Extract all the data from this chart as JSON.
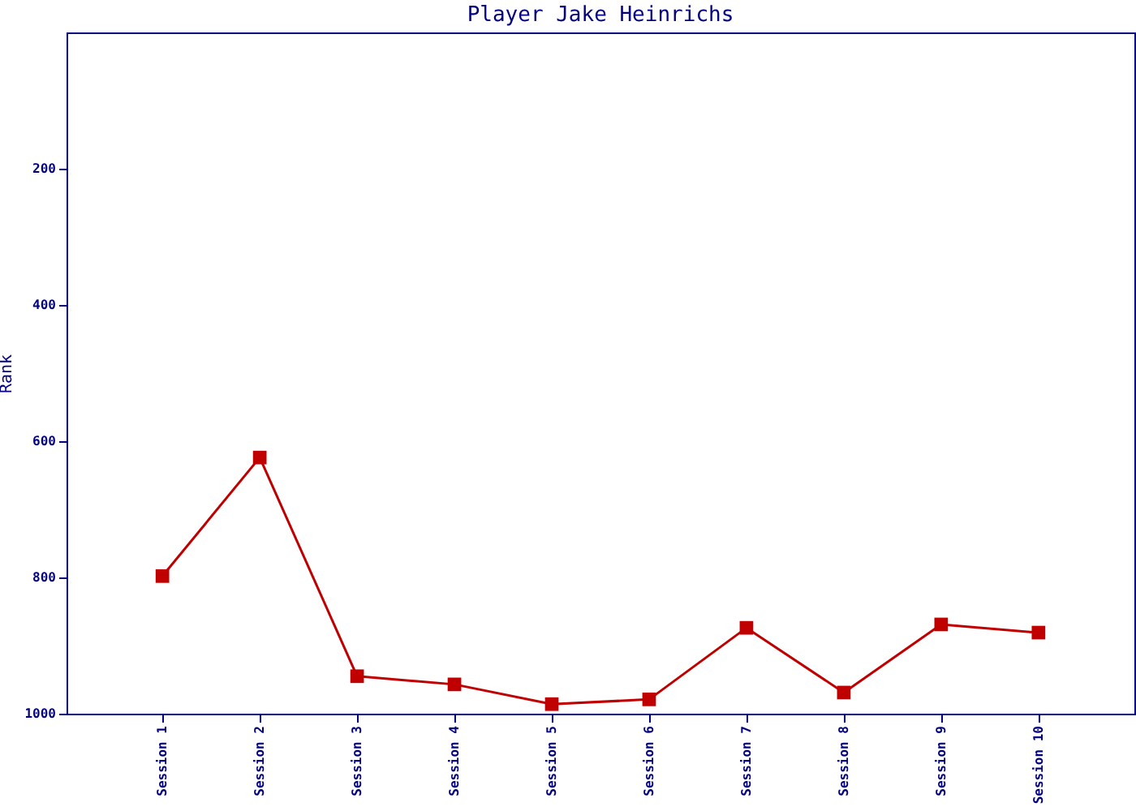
{
  "chart_data": {
    "type": "line",
    "title": "Player Jake Heinrichs",
    "ylabel": "Rank",
    "categories": [
      "Session 1",
      "Session 2",
      "Session 3",
      "Session 4",
      "Session 5",
      "Session 6",
      "Session 7",
      "Session 8",
      "Session 9",
      "Session 10"
    ],
    "series": [
      {
        "color": "#c00000",
        "values": [
          798,
          624,
          945,
          957,
          986,
          979,
          874,
          969,
          869,
          881
        ]
      }
    ],
    "ylim": [
      1000,
      0
    ],
    "yticks": [
      200,
      400,
      600,
      800,
      1000
    ],
    "marker": "square",
    "line_style": "solid",
    "grid": false
  }
}
